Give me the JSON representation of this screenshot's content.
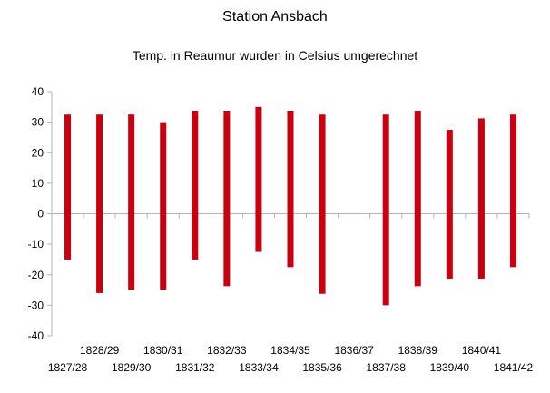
{
  "chart_data": {
    "type": "bar",
    "title": "Station Ansbach",
    "subtitle": "Temp. in Reaumur wurden in Celsius umgerechnet",
    "xlabel": "",
    "ylabel": "",
    "ylim": [
      -40,
      40
    ],
    "yticks": [
      40,
      30,
      20,
      10,
      0,
      -10,
      -20,
      -30,
      -40
    ],
    "grid": false,
    "bar_color": "#c8000f",
    "categories": [
      "1827/28",
      "1828/29",
      "1829/30",
      "1830/31",
      "1831/32",
      "1832/33",
      "1833/34",
      "1834/35",
      "1835/36",
      "1836/37",
      "1837/38",
      "1838/39",
      "1839/40",
      "1840/41",
      "1841/42"
    ],
    "series": [
      {
        "low": -15,
        "high": 32.5
      },
      {
        "low": -26,
        "high": 32.5
      },
      {
        "low": -25,
        "high": 32.5
      },
      {
        "low": -25,
        "high": 30
      },
      {
        "low": -15,
        "high": 33.75
      },
      {
        "low": -23.75,
        "high": 33.75
      },
      {
        "low": -12.5,
        "high": 35
      },
      {
        "low": -17.5,
        "high": 33.75
      },
      {
        "low": -26.25,
        "high": 32.5
      },
      {
        "low": null,
        "high": null
      },
      {
        "low": -30,
        "high": 32.5
      },
      {
        "low": -23.75,
        "high": 33.75
      },
      {
        "low": -21.25,
        "high": 27.5
      },
      {
        "low": -21.25,
        "high": 31.25
      },
      {
        "low": -17.5,
        "high": 32.5
      }
    ]
  }
}
